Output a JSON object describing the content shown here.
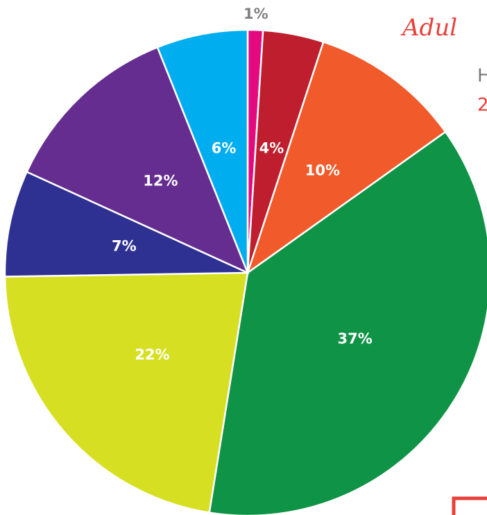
{
  "chart_data": {
    "type": "pie",
    "categories": [
      null,
      null,
      null,
      null,
      null,
      null,
      null,
      null
    ],
    "values": [
      1,
      4,
      10,
      37,
      22,
      7,
      12,
      6
    ],
    "value_labels": [
      "1%",
      "4%",
      "10%",
      "37%",
      "22%",
      "7%",
      "12%",
      "6%"
    ],
    "colors": [
      "#e5097f",
      "#be1e2d",
      "#f15a2a",
      "#0f9346",
      "#d7df23",
      "#2e3192",
      "#662d91",
      "#00aeef"
    ],
    "annotations": [
      "Adul",
      "H",
      "2"
    ]
  }
}
